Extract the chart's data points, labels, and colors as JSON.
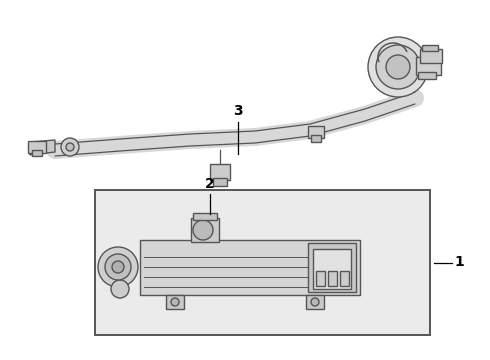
{
  "background_color": "#ffffff",
  "box_color": "#e8e8e8",
  "line_color": "#555555",
  "part_color": "#dddddd",
  "part_stroke": "#555555",
  "label1": "1",
  "label2": "2",
  "label3": "3",
  "figsize": [
    4.9,
    3.6
  ],
  "dpi": 100
}
